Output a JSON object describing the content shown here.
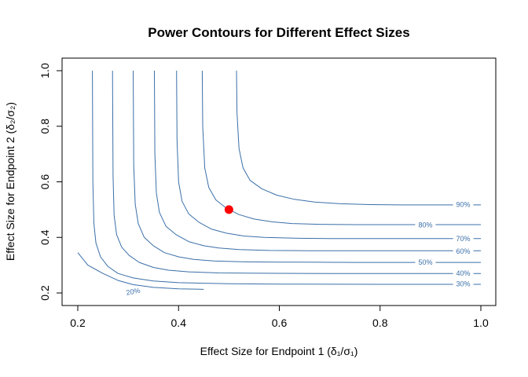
{
  "chart_data": {
    "type": "contour",
    "title": "Power Contours for Different Effect Sizes",
    "xlabel": "Effect Size for Endpoint 1 (δ₁/σ₁)",
    "ylabel": "Effect Size for Endpoint 2 (δ₂/σ₂)",
    "xlim": [
      0.2,
      1.0
    ],
    "ylim": [
      0.2,
      1.0
    ],
    "x_ticks": [
      "0.2",
      "0.4",
      "0.6",
      "0.8",
      "1.0"
    ],
    "y_ticks": [
      "0.2",
      "0.4",
      "0.6",
      "0.8",
      "1.0"
    ],
    "grid": false,
    "line_color": "#3a6fa8",
    "point_color": "#ff0000",
    "series": [
      {
        "name": "20%",
        "label_x": 0.31,
        "label_y": 0.205,
        "label_angle": -10,
        "x": [
          0.2,
          0.22,
          0.25,
          0.28,
          0.31,
          0.35,
          0.4,
          0.45
        ],
        "y": [
          0.345,
          0.3,
          0.27,
          0.245,
          0.23,
          0.22,
          0.215,
          0.213
        ]
      },
      {
        "name": "30%",
        "label_x": 0.965,
        "label_y": 0.232,
        "label_angle": 0,
        "x": [
          0.229,
          0.23,
          0.232,
          0.236,
          0.245,
          0.26,
          0.28,
          0.31,
          0.35,
          0.4,
          0.5,
          0.6,
          0.8,
          1.0
        ],
        "y": [
          1.0,
          0.6,
          0.45,
          0.38,
          0.33,
          0.295,
          0.27,
          0.254,
          0.243,
          0.237,
          0.233,
          0.232,
          0.231,
          0.231
        ]
      },
      {
        "name": "40%",
        "label_x": 0.965,
        "label_y": 0.27,
        "label_angle": 0,
        "x": [
          0.269,
          0.27,
          0.272,
          0.277,
          0.287,
          0.302,
          0.322,
          0.35,
          0.38,
          0.42,
          0.48,
          0.56,
          0.7,
          1.0
        ],
        "y": [
          1.0,
          0.62,
          0.48,
          0.41,
          0.365,
          0.335,
          0.31,
          0.292,
          0.282,
          0.276,
          0.272,
          0.271,
          0.27,
          0.27
        ]
      },
      {
        "name": "50%",
        "label_x": 0.89,
        "label_y": 0.31,
        "label_angle": 0,
        "x": [
          0.31,
          0.311,
          0.314,
          0.32,
          0.332,
          0.35,
          0.372,
          0.4,
          0.43,
          0.47,
          0.53,
          0.6,
          0.75,
          1.0
        ],
        "y": [
          1.0,
          0.66,
          0.52,
          0.45,
          0.4,
          0.37,
          0.345,
          0.33,
          0.321,
          0.315,
          0.312,
          0.311,
          0.31,
          0.31
        ]
      },
      {
        "name": "60%",
        "label_x": 0.965,
        "label_y": 0.35,
        "label_angle": 0,
        "x": [
          0.352,
          0.353,
          0.356,
          0.362,
          0.375,
          0.395,
          0.42,
          0.45,
          0.48,
          0.52,
          0.58,
          0.66,
          0.8,
          1.0
        ],
        "y": [
          1.0,
          0.7,
          0.56,
          0.49,
          0.44,
          0.41,
          0.385,
          0.37,
          0.362,
          0.356,
          0.353,
          0.352,
          0.352,
          0.352
        ]
      },
      {
        "name": "70%",
        "label_x": 0.965,
        "label_y": 0.395,
        "label_angle": 0,
        "x": [
          0.396,
          0.397,
          0.4,
          0.407,
          0.42,
          0.44,
          0.465,
          0.495,
          0.53,
          0.57,
          0.63,
          0.7,
          0.85,
          1.0
        ],
        "y": [
          1.0,
          0.75,
          0.6,
          0.53,
          0.485,
          0.455,
          0.43,
          0.415,
          0.405,
          0.4,
          0.397,
          0.396,
          0.396,
          0.396
        ]
      },
      {
        "name": "80%",
        "label_x": 0.89,
        "label_y": 0.445,
        "label_angle": 0,
        "x": [
          0.447,
          0.448,
          0.452,
          0.46,
          0.474,
          0.495,
          0.52,
          0.55,
          0.585,
          0.625,
          0.68,
          0.75,
          0.88,
          1.0
        ],
        "y": [
          1.0,
          0.8,
          0.65,
          0.58,
          0.535,
          0.505,
          0.482,
          0.466,
          0.456,
          0.45,
          0.447,
          0.446,
          0.446,
          0.446
        ]
      },
      {
        "name": "90%",
        "label_x": 0.965,
        "label_y": 0.518,
        "label_angle": 0,
        "x": [
          0.515,
          0.516,
          0.52,
          0.528,
          0.542,
          0.565,
          0.595,
          0.63,
          0.67,
          0.72,
          0.78,
          0.85,
          0.95,
          1.0
        ],
        "y": [
          1.0,
          0.85,
          0.72,
          0.65,
          0.605,
          0.575,
          0.552,
          0.537,
          0.527,
          0.521,
          0.518,
          0.517,
          0.517,
          0.517
        ]
      }
    ],
    "points": [
      {
        "x": 0.5,
        "y": 0.5
      }
    ]
  }
}
